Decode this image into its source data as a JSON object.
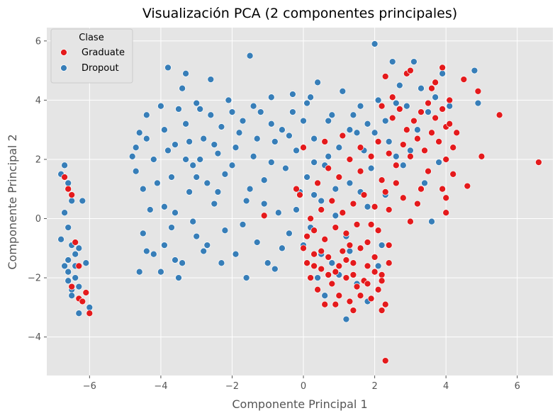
{
  "chart_data": {
    "type": "scatter",
    "title": "Visualización PCA (2 componentes principales)",
    "xlabel": "Componente Principal 1",
    "ylabel": "Componente Principal 2",
    "xlim": [
      -7.2,
      7.0
    ],
    "ylim": [
      -5.3,
      6.45
    ],
    "xticks": [
      -6,
      -4,
      -2,
      0,
      2,
      4,
      6
    ],
    "yticks": [
      -4,
      -2,
      0,
      2,
      4,
      6
    ],
    "tick_labels_x": [
      "−6",
      "−4",
      "−2",
      "0",
      "2",
      "4",
      "6"
    ],
    "tick_labels_y": [
      "−4",
      "−2",
      "0",
      "2",
      "4",
      "6"
    ],
    "grid": true,
    "legend": {
      "title": "Clase",
      "position": "top-left"
    },
    "colors": {
      "background": "#E5E5E5",
      "grid": "#FFFFFF",
      "point_edge": "#FFFFFF"
    },
    "series": [
      {
        "name": "Dropout",
        "color": "#377EB8",
        "points": [
          [
            -6.8,
            1.5
          ],
          [
            -6.7,
            1.8
          ],
          [
            -6.6,
            1.2
          ],
          [
            -6.5,
            0.6
          ],
          [
            -6.7,
            0.2
          ],
          [
            -6.6,
            -0.3
          ],
          [
            -6.5,
            -0.9
          ],
          [
            -6.4,
            -1.2
          ],
          [
            -6.7,
            -1.6
          ],
          [
            -6.6,
            -2.1
          ],
          [
            -6.5,
            -2.4
          ],
          [
            -6.2,
            -2.8
          ],
          [
            -6.0,
            -3.0
          ],
          [
            -6.3,
            -3.2
          ],
          [
            -6.6,
            -1.4
          ],
          [
            -6.4,
            -2.0
          ],
          [
            -6.3,
            -1.0
          ],
          [
            -6.5,
            -2.6
          ],
          [
            -6.8,
            -0.7
          ],
          [
            -6.2,
            0.6
          ],
          [
            -6.1,
            -1.5
          ],
          [
            -6.4,
            -1.6
          ],
          [
            -6.6,
            -1.8
          ],
          [
            -6.3,
            -2.3
          ],
          [
            -4.8,
            2.1
          ],
          [
            -4.7,
            1.6
          ],
          [
            -4.6,
            2.9
          ],
          [
            -4.4,
            3.5
          ],
          [
            -4.5,
            1.0
          ],
          [
            -4.3,
            0.3
          ],
          [
            -4.5,
            -0.5
          ],
          [
            -4.2,
            -1.2
          ],
          [
            -4.6,
            -1.8
          ],
          [
            -4.0,
            3.8
          ],
          [
            -3.9,
            3.0
          ],
          [
            -3.8,
            2.3
          ],
          [
            -3.7,
            1.4
          ],
          [
            -3.8,
            5.1
          ],
          [
            -3.6,
            0.2
          ],
          [
            -3.9,
            -0.9
          ],
          [
            -4.0,
            -1.8
          ],
          [
            -3.5,
            -2.0
          ],
          [
            -3.4,
            4.4
          ],
          [
            -3.3,
            3.2
          ],
          [
            -3.2,
            2.6
          ],
          [
            -3.1,
            1.8
          ],
          [
            -3.3,
            4.9
          ],
          [
            -3.0,
            -0.6
          ],
          [
            -3.4,
            -1.5
          ],
          [
            -2.9,
            3.7
          ],
          [
            -2.8,
            2.7
          ],
          [
            -2.7,
            1.2
          ],
          [
            -2.6,
            4.7
          ],
          [
            -2.8,
            -1.1
          ],
          [
            -2.5,
            0.5
          ],
          [
            -2.4,
            2.2
          ],
          [
            -2.3,
            3.1
          ],
          [
            -2.2,
            -0.4
          ],
          [
            -2.1,
            4.0
          ],
          [
            -2.0,
            1.8
          ],
          [
            -1.9,
            -1.2
          ],
          [
            -1.8,
            2.9
          ],
          [
            -1.7,
            3.3
          ],
          [
            -1.6,
            0.6
          ],
          [
            -1.5,
            5.5
          ],
          [
            -1.4,
            2.1
          ],
          [
            -1.3,
            -0.8
          ],
          [
            -1.2,
            3.6
          ],
          [
            -1.1,
            1.3
          ],
          [
            -1.0,
            -1.5
          ],
          [
            -0.9,
            4.1
          ],
          [
            -0.8,
            2.6
          ],
          [
            -0.7,
            0.2
          ],
          [
            -0.6,
            3.0
          ],
          [
            -0.5,
            1.7
          ],
          [
            -0.4,
            -0.5
          ],
          [
            -0.3,
            4.2
          ],
          [
            -0.2,
            2.3
          ],
          [
            -0.1,
            0.9
          ],
          [
            0.0,
            3.3
          ],
          [
            0.1,
            1.4
          ],
          [
            0.2,
            -0.3
          ],
          [
            0.3,
            2.7
          ],
          [
            0.4,
            4.6
          ],
          [
            0.5,
            0.6
          ],
          [
            0.6,
            1.8
          ],
          [
            0.8,
            3.5
          ],
          [
            0.9,
            0.1
          ],
          [
            1.0,
            2.4
          ],
          [
            1.1,
            4.3
          ],
          [
            1.2,
            -0.6
          ],
          [
            1.3,
            1.2
          ],
          [
            1.5,
            2.9
          ],
          [
            1.6,
            3.8
          ],
          [
            1.8,
            0.4
          ],
          [
            1.9,
            1.7
          ],
          [
            2.0,
            5.9
          ],
          [
            2.1,
            4.0
          ],
          [
            2.2,
            -0.9
          ],
          [
            2.3,
            3.3
          ],
          [
            2.5,
            5.3
          ],
          [
            2.6,
            2.1
          ],
          [
            2.7,
            4.5
          ],
          [
            2.9,
            3.8
          ],
          [
            3.1,
            5.3
          ],
          [
            3.3,
            4.4
          ],
          [
            3.5,
            3.6
          ],
          [
            3.7,
            4.1
          ],
          [
            3.9,
            4.9
          ],
          [
            4.1,
            3.8
          ],
          [
            4.8,
            5.0
          ],
          [
            4.9,
            3.9
          ],
          [
            3.6,
            -0.1
          ],
          [
            -4.2,
            2.0
          ],
          [
            -4.1,
            1.2
          ],
          [
            -3.9,
            0.4
          ],
          [
            -3.7,
            -0.3
          ],
          [
            -3.6,
            -1.4
          ],
          [
            -3.5,
            3.7
          ],
          [
            -3.2,
            0.9
          ],
          [
            -3.1,
            -0.1
          ],
          [
            -2.9,
            2.0
          ],
          [
            -2.6,
            3.5
          ],
          [
            -2.4,
            0.9
          ],
          [
            -2.2,
            1.5
          ],
          [
            -1.9,
            2.4
          ],
          [
            -1.7,
            -0.2
          ],
          [
            -1.5,
            1.0
          ],
          [
            -1.3,
            2.7
          ],
          [
            -1.1,
            0.5
          ],
          [
            -0.9,
            1.9
          ],
          [
            -0.6,
            -1.0
          ],
          [
            -0.4,
            2.8
          ],
          [
            -0.2,
            0.3
          ],
          [
            0.1,
            3.9
          ],
          [
            0.3,
            1.9
          ],
          [
            0.5,
            -1.2
          ],
          [
            0.7,
            2.1
          ],
          [
            1.0,
            -1.9
          ],
          [
            1.2,
            -3.4
          ],
          [
            1.4,
            3.5
          ],
          [
            1.7,
            2.3
          ],
          [
            2.0,
            2.9
          ],
          [
            2.3,
            0.8
          ],
          [
            2.8,
            1.8
          ],
          [
            3.0,
            2.3
          ],
          [
            3.4,
            1.2
          ],
          [
            3.8,
            1.9
          ],
          [
            0.0,
            -0.9
          ],
          [
            0.4,
            -2.0
          ],
          [
            0.6,
            -2.6
          ],
          [
            0.8,
            -1.5
          ],
          [
            1.3,
            -1.1
          ],
          [
            1.5,
            -2.2
          ],
          [
            1.8,
            -2.8
          ],
          [
            2.1,
            -1.6
          ],
          [
            -2.7,
            -0.9
          ],
          [
            -3.0,
            1.4
          ],
          [
            -4.4,
            -1.1
          ],
          [
            -4.7,
            2.4
          ],
          [
            -4.4,
            2.7
          ],
          [
            -3.3,
            2.0
          ],
          [
            -2.3,
            -1.5
          ],
          [
            -1.6,
            -2.0
          ],
          [
            -0.8,
            -1.7
          ],
          [
            0.3,
            0.8
          ],
          [
            0.9,
            1.0
          ],
          [
            1.6,
            0.9
          ],
          [
            2.4,
            2.6
          ],
          [
            3.2,
            3.0
          ],
          [
            -3.6,
            2.5
          ],
          [
            -3.0,
            3.9
          ],
          [
            -2.5,
            2.5
          ],
          [
            -2.0,
            3.6
          ],
          [
            -1.4,
            3.8
          ],
          [
            -0.9,
            3.2
          ],
          [
            -0.3,
            3.6
          ],
          [
            0.2,
            4.1
          ],
          [
            0.7,
            3.3
          ],
          [
            1.3,
            3.0
          ],
          [
            1.8,
            3.2
          ],
          [
            2.6,
            3.9
          ]
        ]
      },
      {
        "name": "Graduate",
        "color": "#E41A1C",
        "points": [
          [
            -6.7,
            1.4
          ],
          [
            -6.6,
            1.0
          ],
          [
            -6.5,
            0.8
          ],
          [
            -6.4,
            -0.8
          ],
          [
            -6.5,
            -2.3
          ],
          [
            -6.3,
            -2.7
          ],
          [
            -6.2,
            -2.8
          ],
          [
            -6.0,
            -3.2
          ],
          [
            -6.1,
            -2.5
          ],
          [
            -6.3,
            -1.6
          ],
          [
            0.0,
            -1.0
          ],
          [
            0.1,
            -1.5
          ],
          [
            0.2,
            -2.0
          ],
          [
            0.3,
            -1.2
          ],
          [
            0.4,
            -2.4
          ],
          [
            0.5,
            -1.7
          ],
          [
            0.6,
            -2.9
          ],
          [
            0.7,
            -1.3
          ],
          [
            0.8,
            -2.2
          ],
          [
            0.9,
            -1.8
          ],
          [
            1.0,
            -2.6
          ],
          [
            1.1,
            -1.1
          ],
          [
            1.2,
            -2.0
          ],
          [
            1.3,
            -2.8
          ],
          [
            1.4,
            -1.5
          ],
          [
            1.5,
            -2.3
          ],
          [
            1.6,
            -1.0
          ],
          [
            1.7,
            -2.1
          ],
          [
            1.8,
            -1.6
          ],
          [
            1.9,
            -2.7
          ],
          [
            2.0,
            -1.3
          ],
          [
            2.1,
            -2.4
          ],
          [
            2.2,
            -1.9
          ],
          [
            2.3,
            -2.9
          ],
          [
            2.4,
            -1.5
          ],
          [
            0.3,
            -0.4
          ],
          [
            0.6,
            -0.7
          ],
          [
            0.9,
            -0.3
          ],
          [
            1.2,
            -0.5
          ],
          [
            1.5,
            -0.2
          ],
          [
            1.8,
            -0.8
          ],
          [
            2.1,
            -0.4
          ],
          [
            2.4,
            -0.9
          ],
          [
            0.5,
            0.3
          ],
          [
            0.8,
            0.6
          ],
          [
            1.1,
            0.2
          ],
          [
            1.4,
            0.5
          ],
          [
            1.7,
            0.8
          ],
          [
            2.0,
            0.4
          ],
          [
            2.3,
            0.9
          ],
          [
            0.4,
            1.2
          ],
          [
            0.7,
            1.7
          ],
          [
            1.0,
            1.4
          ],
          [
            1.3,
            2.0
          ],
          [
            1.6,
            1.6
          ],
          [
            1.9,
            2.1
          ],
          [
            2.2,
            1.3
          ],
          [
            0.6,
            2.6
          ],
          [
            1.1,
            2.8
          ],
          [
            1.6,
            2.4
          ],
          [
            2.1,
            2.6
          ],
          [
            2.4,
            2.2
          ],
          [
            2.6,
            1.8
          ],
          [
            2.8,
            2.5
          ],
          [
            3.0,
            2.1
          ],
          [
            3.2,
            2.7
          ],
          [
            3.4,
            2.3
          ],
          [
            3.6,
            2.9
          ],
          [
            3.8,
            2.6
          ],
          [
            4.0,
            3.1
          ],
          [
            4.2,
            2.4
          ],
          [
            3.7,
            3.4
          ],
          [
            3.9,
            3.7
          ],
          [
            4.1,
            3.2
          ],
          [
            3.5,
            3.9
          ],
          [
            3.3,
            3.6
          ],
          [
            3.1,
            3.3
          ],
          [
            2.9,
            3.0
          ],
          [
            2.7,
            3.7
          ],
          [
            2.5,
            4.1
          ],
          [
            2.3,
            4.8
          ],
          [
            2.9,
            4.9
          ],
          [
            3.6,
            4.4
          ],
          [
            3.9,
            5.1
          ],
          [
            4.5,
            4.7
          ],
          [
            4.9,
            4.3
          ],
          [
            5.5,
            3.5
          ],
          [
            4.0,
            2.0
          ],
          [
            4.2,
            1.5
          ],
          [
            4.6,
            1.1
          ],
          [
            4.0,
            0.7
          ],
          [
            3.9,
            1.0
          ],
          [
            4.0,
            0.2
          ],
          [
            3.0,
            -0.1
          ],
          [
            3.2,
            0.5
          ],
          [
            2.8,
            0.7
          ],
          [
            2.4,
            0.3
          ],
          [
            5.0,
            2.1
          ],
          [
            6.6,
            1.9
          ],
          [
            2.3,
            -4.8
          ],
          [
            0.9,
            -2.9
          ],
          [
            1.4,
            -3.1
          ],
          [
            2.2,
            -3.1
          ],
          [
            1.0,
            -1.6
          ],
          [
            1.2,
            -1.4
          ],
          [
            1.4,
            -1.9
          ],
          [
            1.6,
            -2.6
          ],
          [
            1.8,
            -2.2
          ],
          [
            2.0,
            -1.8
          ],
          [
            2.2,
            -2.1
          ],
          [
            0.7,
            -1.9
          ],
          [
            0.5,
            -1.1
          ],
          [
            0.3,
            -1.6
          ],
          [
            0.1,
            -0.6
          ],
          [
            -0.1,
            0.8
          ],
          [
            -0.2,
            1.0
          ],
          [
            -1.1,
            0.1
          ],
          [
            0.0,
            2.4
          ],
          [
            0.2,
            0.0
          ],
          [
            1.9,
            -0.2
          ],
          [
            1.3,
            -0.9
          ],
          [
            2.6,
            1.2
          ],
          [
            3.3,
            1.0
          ],
          [
            3.5,
            1.6
          ],
          [
            4.3,
            2.9
          ],
          [
            4.1,
            4.0
          ],
          [
            3.7,
            4.6
          ],
          [
            3.0,
            5.0
          ],
          [
            2.5,
            3.4
          ],
          [
            2.2,
            3.8
          ]
        ]
      }
    ]
  }
}
